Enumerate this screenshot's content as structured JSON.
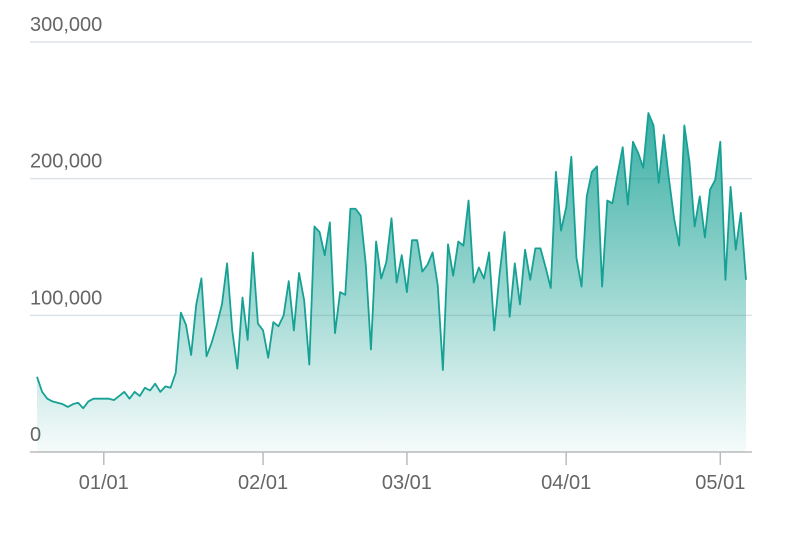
{
  "chart_data": {
    "type": "area",
    "x": [
      "12/19",
      "12/20",
      "12/21",
      "12/22",
      "12/23",
      "12/24",
      "12/25",
      "12/26",
      "12/27",
      "12/28",
      "12/29",
      "12/30",
      "12/31",
      "01/01",
      "01/02",
      "01/03",
      "01/04",
      "01/05",
      "01/06",
      "01/07",
      "01/08",
      "01/09",
      "01/10",
      "01/11",
      "01/12",
      "01/13",
      "01/14",
      "01/15",
      "01/16",
      "01/17",
      "01/18",
      "01/19",
      "01/20",
      "01/21",
      "01/22",
      "01/23",
      "01/24",
      "01/25",
      "01/26",
      "01/27",
      "01/28",
      "01/29",
      "01/30",
      "01/31",
      "02/01",
      "02/02",
      "02/03",
      "02/04",
      "02/05",
      "02/06",
      "02/07",
      "02/08",
      "02/09",
      "02/10",
      "02/11",
      "02/12",
      "02/13",
      "02/14",
      "02/15",
      "02/16",
      "02/17",
      "02/18",
      "02/19",
      "02/20",
      "02/21",
      "02/22",
      "02/23",
      "02/24",
      "02/25",
      "02/26",
      "02/27",
      "02/28",
      "03/01",
      "03/02",
      "03/03",
      "03/04",
      "03/05",
      "03/06",
      "03/07",
      "03/08",
      "03/09",
      "03/10",
      "03/11",
      "03/12",
      "03/13",
      "03/14",
      "03/15",
      "03/16",
      "03/17",
      "03/18",
      "03/19",
      "03/20",
      "03/21",
      "03/22",
      "03/23",
      "03/24",
      "03/25",
      "03/26",
      "03/27",
      "03/28",
      "03/29",
      "03/30",
      "03/31",
      "04/01",
      "04/02",
      "04/03",
      "04/04",
      "04/05",
      "04/06",
      "04/07",
      "04/08",
      "04/09",
      "04/10",
      "04/11",
      "04/12",
      "04/13",
      "04/14",
      "04/15",
      "04/16",
      "04/17",
      "04/18",
      "04/19",
      "04/20",
      "04/21",
      "04/22",
      "04/23",
      "04/24",
      "04/25",
      "04/26",
      "04/27",
      "04/28",
      "04/29",
      "04/30",
      "05/01",
      "05/02",
      "05/03",
      "05/04",
      "05/05",
      "05/06"
    ],
    "values": [
      55000,
      44000,
      39000,
      37000,
      36000,
      35000,
      33000,
      35000,
      36000,
      32000,
      37000,
      39000,
      39000,
      39000,
      39000,
      38000,
      41000,
      44000,
      39000,
      44000,
      41000,
      47000,
      45000,
      50000,
      44000,
      48000,
      47000,
      58000,
      102000,
      93000,
      71000,
      108000,
      127000,
      70000,
      80000,
      93000,
      108000,
      138000,
      89000,
      61000,
      113000,
      82000,
      146000,
      94000,
      89000,
      69000,
      95000,
      92000,
      100000,
      125000,
      89000,
      131000,
      111000,
      64000,
      165000,
      161000,
      144000,
      168000,
      87000,
      117000,
      115000,
      178000,
      178000,
      173000,
      137000,
      75000,
      154000,
      127000,
      139000,
      171000,
      124000,
      144000,
      117000,
      155000,
      155000,
      132000,
      137000,
      146000,
      122000,
      60000,
      152000,
      129000,
      154000,
      151000,
      184000,
      124000,
      135000,
      127000,
      146000,
      89000,
      129000,
      161000,
      99000,
      138000,
      108000,
      148000,
      126000,
      149000,
      149000,
      135000,
      120000,
      205000,
      162000,
      179000,
      216000,
      142000,
      121000,
      187000,
      205000,
      209000,
      121000,
      184000,
      182000,
      203000,
      223000,
      181000,
      227000,
      219000,
      208000,
      248000,
      239000,
      197000,
      232000,
      200000,
      171000,
      151000,
      239000,
      212000,
      165000,
      187000,
      157000,
      192000,
      199000,
      227000,
      126000,
      194000,
      148000,
      175000,
      126000
    ],
    "color": "#16a194",
    "ylim": [
      0,
      300000
    ],
    "yticks": [
      0,
      {
        "value": 100000,
        "label": "100,000"
      },
      {
        "value": 200000,
        "label": "200,000"
      },
      {
        "value": 300000,
        "label": "300,000"
      }
    ],
    "xticks": [
      "01/01",
      "02/01",
      "03/01",
      "04/01",
      "05/01"
    ],
    "grid": true
  }
}
